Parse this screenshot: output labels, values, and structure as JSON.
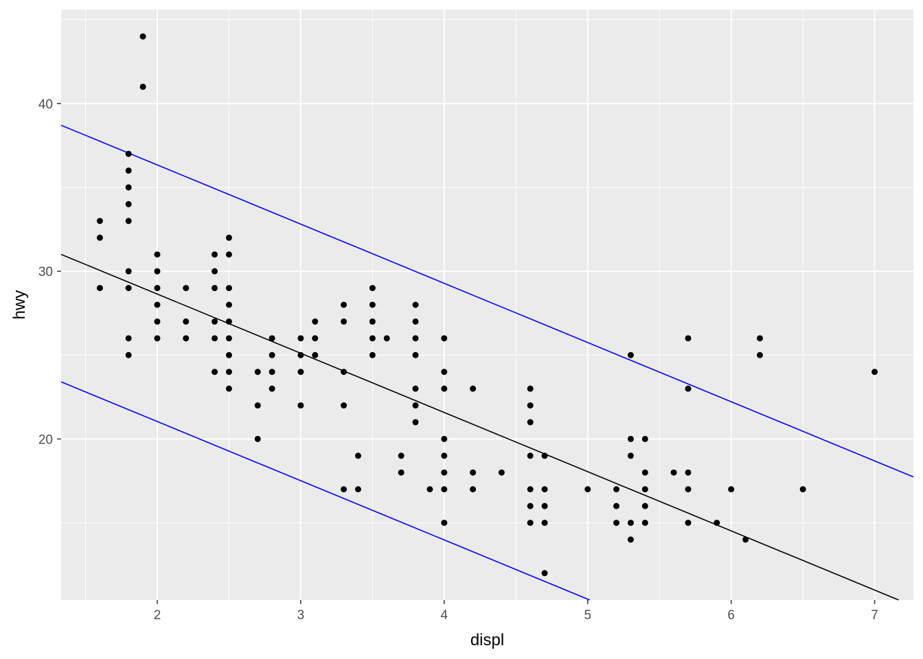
{
  "chart_data": {
    "type": "scatter",
    "title": "",
    "xlabel": "displ",
    "ylabel": "hwy",
    "xlim": [
      1.33,
      7.27
    ],
    "ylim": [
      10.4,
      45.6
    ],
    "x_ticks": [
      2,
      3,
      4,
      5,
      6,
      7
    ],
    "y_ticks": [
      20,
      30,
      40
    ],
    "grid": true,
    "background": "#EBEBEB",
    "gridline_color": "#FFFFFF",
    "point_color": "#000000",
    "points": [
      [
        1.6,
        33
      ],
      [
        1.6,
        32
      ],
      [
        1.6,
        29
      ],
      [
        1.8,
        37
      ],
      [
        1.8,
        36
      ],
      [
        1.8,
        35
      ],
      [
        1.8,
        34
      ],
      [
        1.8,
        33
      ],
      [
        1.8,
        30
      ],
      [
        1.8,
        29
      ],
      [
        1.8,
        26
      ],
      [
        1.8,
        25
      ],
      [
        1.9,
        44
      ],
      [
        1.9,
        41
      ],
      [
        2.0,
        31
      ],
      [
        2.0,
        30
      ],
      [
        2.0,
        29
      ],
      [
        2.0,
        28
      ],
      [
        2.0,
        27
      ],
      [
        2.0,
        26
      ],
      [
        2.2,
        29
      ],
      [
        2.2,
        27
      ],
      [
        2.2,
        26
      ],
      [
        2.4,
        31
      ],
      [
        2.4,
        30
      ],
      [
        2.4,
        29
      ],
      [
        2.4,
        27
      ],
      [
        2.4,
        26
      ],
      [
        2.4,
        24
      ],
      [
        2.5,
        32
      ],
      [
        2.5,
        31
      ],
      [
        2.5,
        29
      ],
      [
        2.5,
        28
      ],
      [
        2.5,
        27
      ],
      [
        2.5,
        26
      ],
      [
        2.5,
        25
      ],
      [
        2.5,
        24
      ],
      [
        2.5,
        23
      ],
      [
        2.7,
        24
      ],
      [
        2.7,
        22
      ],
      [
        2.7,
        20
      ],
      [
        2.8,
        26
      ],
      [
        2.8,
        25
      ],
      [
        2.8,
        24
      ],
      [
        2.8,
        23
      ],
      [
        3.0,
        26
      ],
      [
        3.0,
        25
      ],
      [
        3.0,
        24
      ],
      [
        3.0,
        22
      ],
      [
        3.1,
        27
      ],
      [
        3.1,
        26
      ],
      [
        3.1,
        25
      ],
      [
        3.3,
        28
      ],
      [
        3.3,
        27
      ],
      [
        3.3,
        24
      ],
      [
        3.3,
        22
      ],
      [
        3.3,
        17
      ],
      [
        3.4,
        19
      ],
      [
        3.4,
        17
      ],
      [
        3.5,
        29
      ],
      [
        3.5,
        28
      ],
      [
        3.5,
        27
      ],
      [
        3.5,
        26
      ],
      [
        3.5,
        25
      ],
      [
        3.6,
        26
      ],
      [
        3.7,
        19
      ],
      [
        3.7,
        18
      ],
      [
        3.8,
        28
      ],
      [
        3.8,
        27
      ],
      [
        3.8,
        26
      ],
      [
        3.8,
        25
      ],
      [
        3.8,
        23
      ],
      [
        3.8,
        22
      ],
      [
        3.8,
        21
      ],
      [
        3.9,
        17
      ],
      [
        4.0,
        26
      ],
      [
        4.0,
        24
      ],
      [
        4.0,
        23
      ],
      [
        4.0,
        20
      ],
      [
        4.0,
        19
      ],
      [
        4.0,
        18
      ],
      [
        4.0,
        17
      ],
      [
        4.0,
        15
      ],
      [
        4.2,
        23
      ],
      [
        4.2,
        18
      ],
      [
        4.2,
        17
      ],
      [
        4.4,
        18
      ],
      [
        4.6,
        23
      ],
      [
        4.6,
        22
      ],
      [
        4.6,
        21
      ],
      [
        4.6,
        19
      ],
      [
        4.6,
        17
      ],
      [
        4.6,
        16
      ],
      [
        4.6,
        15
      ],
      [
        4.7,
        19
      ],
      [
        4.7,
        17
      ],
      [
        4.7,
        16
      ],
      [
        4.7,
        15
      ],
      [
        4.7,
        12
      ],
      [
        5.0,
        17
      ],
      [
        5.2,
        17
      ],
      [
        5.2,
        16
      ],
      [
        5.2,
        15
      ],
      [
        5.3,
        25
      ],
      [
        5.3,
        20
      ],
      [
        5.3,
        19
      ],
      [
        5.3,
        15
      ],
      [
        5.3,
        14
      ],
      [
        5.4,
        20
      ],
      [
        5.4,
        18
      ],
      [
        5.4,
        17
      ],
      [
        5.4,
        16
      ],
      [
        5.4,
        15
      ],
      [
        5.6,
        18
      ],
      [
        5.7,
        26
      ],
      [
        5.7,
        23
      ],
      [
        5.7,
        18
      ],
      [
        5.7,
        17
      ],
      [
        5.7,
        15
      ],
      [
        5.9,
        15
      ],
      [
        6.0,
        17
      ],
      [
        6.1,
        14
      ],
      [
        6.2,
        26
      ],
      [
        6.2,
        25
      ],
      [
        6.5,
        17
      ],
      [
        7.0,
        24
      ]
    ],
    "lines": [
      {
        "role": "fit",
        "color": "#000000",
        "intercept": 35.7,
        "slope": -3.53
      },
      {
        "role": "upper",
        "color": "#0000FF",
        "intercept": 43.4,
        "slope": -3.53
      },
      {
        "role": "lower",
        "color": "#0000FF",
        "intercept": 28.1,
        "slope": -3.53
      }
    ]
  }
}
